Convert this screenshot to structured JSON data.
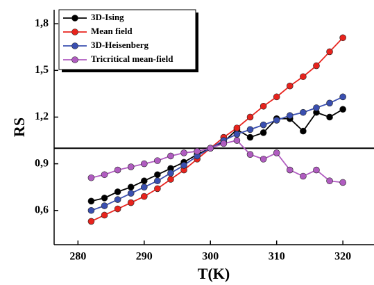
{
  "chart_data": {
    "type": "line",
    "x_label": "T(K)",
    "y_label": "RS",
    "x": [
      282,
      284,
      286,
      288,
      290,
      292,
      294,
      296,
      298,
      300,
      302,
      304,
      306,
      308,
      310,
      312,
      314,
      316,
      318,
      320
    ],
    "series": [
      {
        "name": "3D-Ising",
        "color": "#000000",
        "values": [
          0.66,
          0.68,
          0.72,
          0.75,
          0.79,
          0.83,
          0.87,
          0.91,
          0.96,
          1.0,
          1.04,
          1.12,
          1.07,
          1.1,
          1.19,
          1.19,
          1.11,
          1.23,
          1.2,
          1.25
        ]
      },
      {
        "name": "Mean field",
        "color": "#e8231d",
        "values": [
          0.53,
          0.57,
          0.61,
          0.65,
          0.69,
          0.74,
          0.8,
          0.86,
          0.93,
          1.0,
          1.07,
          1.13,
          1.2,
          1.27,
          1.33,
          1.4,
          1.46,
          1.53,
          1.62,
          1.71
        ]
      },
      {
        "name": "3D-Heisenberg",
        "color": "#3a4fb0",
        "values": [
          0.6,
          0.63,
          0.67,
          0.71,
          0.75,
          0.79,
          0.84,
          0.89,
          0.95,
          1.0,
          1.05,
          1.09,
          1.12,
          1.15,
          1.18,
          1.21,
          1.23,
          1.26,
          1.29,
          1.33
        ]
      },
      {
        "name": "Tricritical mean-field",
        "color": "#b05cc0",
        "values": [
          0.81,
          0.83,
          0.86,
          0.88,
          0.9,
          0.92,
          0.95,
          0.97,
          0.98,
          1.0,
          1.03,
          1.05,
          0.96,
          0.93,
          0.97,
          0.86,
          0.82,
          0.86,
          0.79,
          0.78
        ]
      }
    ],
    "reference_line": 1.0,
    "xlim": [
      276.4,
      324.7
    ],
    "ylim": [
      0.38,
      1.89
    ],
    "xticks": [
      280,
      290,
      300,
      310,
      320
    ],
    "yticks": [
      {
        "value": 0.6,
        "label": "0,6"
      },
      {
        "value": 0.9,
        "label": "0,9"
      },
      {
        "value": 1.2,
        "label": "1,2"
      },
      {
        "value": 1.5,
        "label": "1,5"
      },
      {
        "value": 1.8,
        "label": "1,8"
      }
    ],
    "legend": "upper left"
  }
}
